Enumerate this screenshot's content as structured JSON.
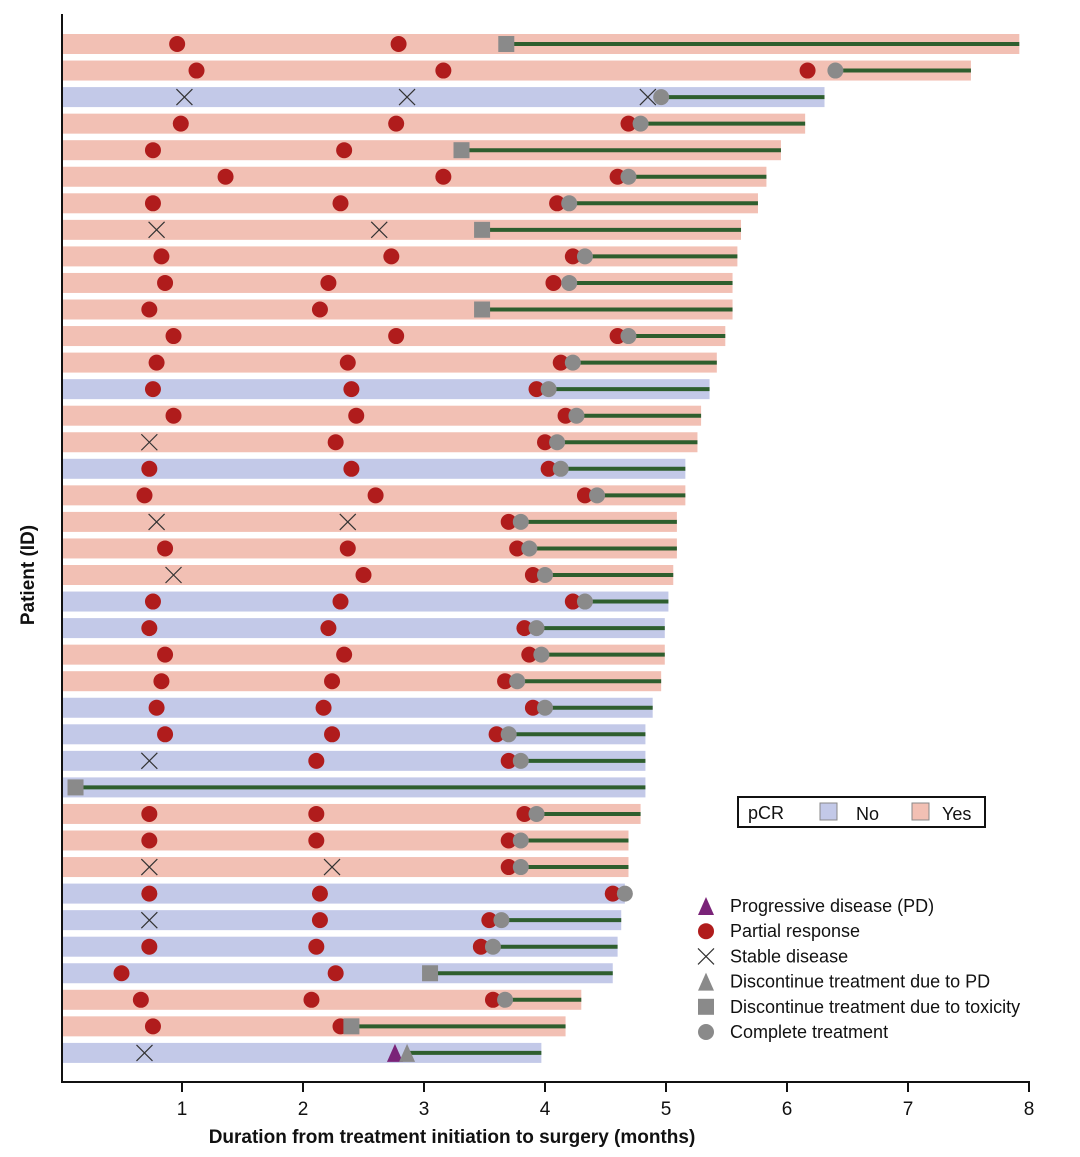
{
  "chart_data": {
    "type": "swimmer",
    "xlabel": "Duration from treatment initiation to surgery (months)",
    "ylabel": "Patient (ID)",
    "xlim": [
      0,
      8
    ],
    "xticks": [
      "1",
      "2",
      "3",
      "4",
      "5",
      "6",
      "7",
      "8"
    ],
    "grid": false,
    "colors": {
      "pcr_no": "#c3c9e8",
      "pcr_yes": "#f2c0b4",
      "follow_line": "#2e5e2e",
      "PR": "#b01c1c",
      "PD": "#7a2378",
      "grey": "#8a8a8a",
      "SD": "#333333"
    },
    "pcr_legend": {
      "title": "pCR",
      "no": "No",
      "yes": "Yes"
    },
    "event_legend": [
      {
        "type": "PD",
        "label": "Progressive disease (PD)"
      },
      {
        "type": "PR",
        "label": "Partial response"
      },
      {
        "type": "SD",
        "label": "Stable disease"
      },
      {
        "type": "disc_pd",
        "label": "Discontinue treatment due to PD"
      },
      {
        "type": "disc_tox",
        "label": "Discontinue treatment due to toxicity"
      },
      {
        "type": "complete",
        "label": "Complete treatment"
      }
    ],
    "rows": [
      {
        "pcr": "Yes",
        "end": 7.92,
        "events": [
          [
            "PR",
            0.96
          ],
          [
            "PR",
            2.79
          ],
          [
            "disc_tox",
            3.68
          ]
        ]
      },
      {
        "pcr": "Yes",
        "end": 7.52,
        "events": [
          [
            "PR",
            1.12
          ],
          [
            "PR",
            3.16
          ],
          [
            "PR",
            6.17
          ],
          [
            "complete",
            6.4
          ]
        ]
      },
      {
        "pcr": "No",
        "end": 6.31,
        "events": [
          [
            "SD",
            1.02
          ],
          [
            "SD",
            2.86
          ],
          [
            "SD",
            4.85
          ],
          [
            "complete",
            4.96
          ]
        ]
      },
      {
        "pcr": "Yes",
        "end": 6.15,
        "events": [
          [
            "PR",
            0.99
          ],
          [
            "PR",
            2.77
          ],
          [
            "PR",
            4.69
          ],
          [
            "complete",
            4.79
          ]
        ]
      },
      {
        "pcr": "Yes",
        "end": 5.95,
        "events": [
          [
            "PR",
            0.76
          ],
          [
            "PR",
            2.34
          ],
          [
            "disc_tox",
            3.31
          ]
        ]
      },
      {
        "pcr": "Yes",
        "end": 5.83,
        "events": [
          [
            "PR",
            1.36
          ],
          [
            "PR",
            3.16
          ],
          [
            "PR",
            4.6
          ],
          [
            "complete",
            4.69
          ]
        ]
      },
      {
        "pcr": "Yes",
        "end": 5.76,
        "events": [
          [
            "PR",
            0.76
          ],
          [
            "PR",
            2.31
          ],
          [
            "PR",
            4.1
          ],
          [
            "complete",
            4.2
          ]
        ]
      },
      {
        "pcr": "Yes",
        "end": 5.62,
        "events": [
          [
            "SD",
            0.79
          ],
          [
            "SD",
            2.63
          ],
          [
            "disc_tox",
            3.48
          ]
        ]
      },
      {
        "pcr": "Yes",
        "end": 5.59,
        "events": [
          [
            "PR",
            0.83
          ],
          [
            "PR",
            2.73
          ],
          [
            "PR",
            4.23
          ],
          [
            "complete",
            4.33
          ]
        ]
      },
      {
        "pcr": "Yes",
        "end": 5.55,
        "events": [
          [
            "PR",
            0.86
          ],
          [
            "PR",
            2.21
          ],
          [
            "PR",
            4.07
          ],
          [
            "complete",
            4.2
          ]
        ]
      },
      {
        "pcr": "Yes",
        "end": 5.55,
        "events": [
          [
            "PR",
            0.73
          ],
          [
            "PR",
            2.14
          ],
          [
            "disc_tox",
            3.48
          ]
        ]
      },
      {
        "pcr": "Yes",
        "end": 5.49,
        "events": [
          [
            "PR",
            0.93
          ],
          [
            "PR",
            2.77
          ],
          [
            "PR",
            4.6
          ],
          [
            "complete",
            4.69
          ]
        ]
      },
      {
        "pcr": "Yes",
        "end": 5.42,
        "events": [
          [
            "PR",
            0.79
          ],
          [
            "PR",
            2.37
          ],
          [
            "PR",
            4.13
          ],
          [
            "complete",
            4.23
          ]
        ]
      },
      {
        "pcr": "No",
        "end": 5.36,
        "events": [
          [
            "PR",
            0.76
          ],
          [
            "PR",
            2.4
          ],
          [
            "PR",
            3.93
          ],
          [
            "complete",
            4.03
          ]
        ]
      },
      {
        "pcr": "Yes",
        "end": 5.29,
        "events": [
          [
            "PR",
            0.93
          ],
          [
            "PR",
            2.44
          ],
          [
            "PR",
            4.17
          ],
          [
            "complete",
            4.26
          ]
        ]
      },
      {
        "pcr": "Yes",
        "end": 5.26,
        "events": [
          [
            "SD",
            0.73
          ],
          [
            "PR",
            2.27
          ],
          [
            "PR",
            4.0
          ],
          [
            "complete",
            4.1
          ]
        ]
      },
      {
        "pcr": "No",
        "end": 5.16,
        "events": [
          [
            "PR",
            0.73
          ],
          [
            "PR",
            2.4
          ],
          [
            "PR",
            4.03
          ],
          [
            "complete",
            4.13
          ]
        ]
      },
      {
        "pcr": "Yes",
        "end": 5.16,
        "events": [
          [
            "PR",
            0.69
          ],
          [
            "PR",
            2.6
          ],
          [
            "PR",
            4.33
          ],
          [
            "complete",
            4.43
          ]
        ]
      },
      {
        "pcr": "Yes",
        "end": 5.09,
        "events": [
          [
            "SD",
            0.79
          ],
          [
            "SD",
            2.37
          ],
          [
            "PR",
            3.7
          ],
          [
            "complete",
            3.8
          ]
        ]
      },
      {
        "pcr": "Yes",
        "end": 5.09,
        "events": [
          [
            "PR",
            0.86
          ],
          [
            "PR",
            2.37
          ],
          [
            "PR",
            3.77
          ],
          [
            "complete",
            3.87
          ]
        ]
      },
      {
        "pcr": "Yes",
        "end": 5.06,
        "events": [
          [
            "SD",
            0.93
          ],
          [
            "PR",
            2.5
          ],
          [
            "PR",
            3.9
          ],
          [
            "complete",
            4.0
          ]
        ]
      },
      {
        "pcr": "No",
        "end": 5.02,
        "events": [
          [
            "PR",
            0.76
          ],
          [
            "PR",
            2.31
          ],
          [
            "PR",
            4.23
          ],
          [
            "complete",
            4.33
          ]
        ]
      },
      {
        "pcr": "No",
        "end": 4.99,
        "events": [
          [
            "PR",
            0.73
          ],
          [
            "PR",
            2.21
          ],
          [
            "PR",
            3.83
          ],
          [
            "complete",
            3.93
          ]
        ]
      },
      {
        "pcr": "Yes",
        "end": 4.99,
        "events": [
          [
            "PR",
            0.86
          ],
          [
            "PR",
            2.34
          ],
          [
            "PR",
            3.87
          ],
          [
            "complete",
            3.97
          ]
        ]
      },
      {
        "pcr": "Yes",
        "end": 4.96,
        "events": [
          [
            "PR",
            0.83
          ],
          [
            "PR",
            2.24
          ],
          [
            "PR",
            3.67
          ],
          [
            "complete",
            3.77
          ]
        ]
      },
      {
        "pcr": "No",
        "end": 4.89,
        "events": [
          [
            "PR",
            0.79
          ],
          [
            "PR",
            2.17
          ],
          [
            "PR",
            3.9
          ],
          [
            "complete",
            4.0
          ]
        ]
      },
      {
        "pcr": "No",
        "end": 4.83,
        "events": [
          [
            "PR",
            0.86
          ],
          [
            "PR",
            2.24
          ],
          [
            "PR",
            3.6
          ],
          [
            "complete",
            3.7
          ]
        ]
      },
      {
        "pcr": "No",
        "end": 4.83,
        "events": [
          [
            "SD",
            0.73
          ],
          [
            "PR",
            2.11
          ],
          [
            "PR",
            3.7
          ],
          [
            "complete",
            3.8
          ]
        ]
      },
      {
        "pcr": "No",
        "end": 4.83,
        "events": [
          [
            "disc_tox",
            0.12
          ]
        ]
      },
      {
        "pcr": "Yes",
        "end": 4.79,
        "events": [
          [
            "PR",
            0.73
          ],
          [
            "PR",
            2.11
          ],
          [
            "PR",
            3.83
          ],
          [
            "complete",
            3.93
          ]
        ]
      },
      {
        "pcr": "Yes",
        "end": 4.69,
        "events": [
          [
            "PR",
            0.73
          ],
          [
            "PR",
            2.11
          ],
          [
            "PR",
            3.7
          ],
          [
            "complete",
            3.8
          ]
        ]
      },
      {
        "pcr": "Yes",
        "end": 4.69,
        "events": [
          [
            "SD",
            0.73
          ],
          [
            "SD",
            2.24
          ],
          [
            "PR",
            3.7
          ],
          [
            "complete",
            3.8
          ]
        ]
      },
      {
        "pcr": "No",
        "end": 4.66,
        "events": [
          [
            "PR",
            0.73
          ],
          [
            "PR",
            2.14
          ],
          [
            "PR",
            4.56
          ],
          [
            "complete",
            4.66
          ]
        ]
      },
      {
        "pcr": "No",
        "end": 4.63,
        "events": [
          [
            "SD",
            0.73
          ],
          [
            "PR",
            2.14
          ],
          [
            "PR",
            3.54
          ],
          [
            "complete",
            3.64
          ]
        ]
      },
      {
        "pcr": "No",
        "end": 4.6,
        "events": [
          [
            "PR",
            0.73
          ],
          [
            "PR",
            2.11
          ],
          [
            "PR",
            3.47
          ],
          [
            "complete",
            3.57
          ]
        ]
      },
      {
        "pcr": "No",
        "end": 4.56,
        "events": [
          [
            "PR",
            0.5
          ],
          [
            "PR",
            2.27
          ],
          [
            "disc_tox",
            3.05
          ]
        ]
      },
      {
        "pcr": "Yes",
        "end": 4.3,
        "events": [
          [
            "PR",
            0.66
          ],
          [
            "PR",
            2.07
          ],
          [
            "PR",
            3.57
          ],
          [
            "complete",
            3.67
          ]
        ]
      },
      {
        "pcr": "Yes",
        "end": 4.17,
        "events": [
          [
            "PR",
            0.76
          ],
          [
            "PR",
            2.31
          ],
          [
            "disc_tox",
            2.4
          ]
        ]
      },
      {
        "pcr": "No",
        "end": 3.97,
        "events": [
          [
            "SD",
            0.69
          ],
          [
            "PD",
            2.76
          ],
          [
            "disc_pd",
            2.86
          ]
        ]
      }
    ]
  }
}
